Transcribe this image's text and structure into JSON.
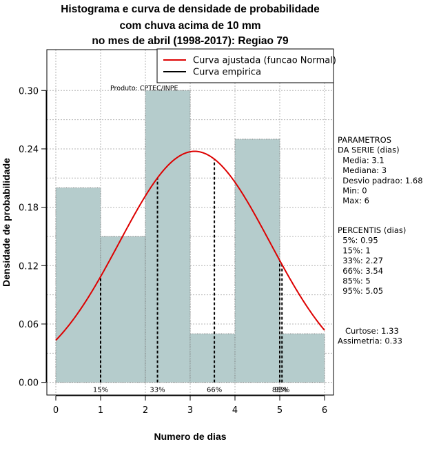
{
  "chart_data": {
    "type": "bar",
    "title_lines": [
      "Histograma e curva de densidade de probabilidade",
      "com chuva acima de 10 mm",
      "no mes de abril (1998-2017): Regiao 79"
    ],
    "xlabel": "Numero de dias",
    "ylabel": "Densidade de probabilidade",
    "xlim": [
      -0.2,
      6.2
    ],
    "ylim": [
      -0.013,
      0.342
    ],
    "x_ticks": [
      0,
      1,
      2,
      3,
      4,
      5,
      6
    ],
    "y_ticks": [
      0.0,
      0.06,
      0.12,
      0.18,
      0.24,
      0.3
    ],
    "y_tick_labels": [
      "0.00",
      "0.06",
      "0.12",
      "0.18",
      "0.24",
      "0.30"
    ],
    "grid": true,
    "bins": [
      {
        "start": 0,
        "end": 1,
        "density": 0.2
      },
      {
        "start": 1,
        "end": 2,
        "density": 0.15
      },
      {
        "start": 2,
        "end": 3,
        "density": 0.3
      },
      {
        "start": 3,
        "end": 4,
        "density": 0.05
      },
      {
        "start": 4,
        "end": 5,
        "density": 0.25
      },
      {
        "start": 5,
        "end": 6,
        "density": 0.05
      }
    ],
    "bar_color": "#b5cccc",
    "normal_curve": {
      "mean": 3.1,
      "sd": 1.68,
      "color": "#dd0000"
    },
    "percentile_lines": [
      {
        "label": "15%",
        "x": 1.0
      },
      {
        "label": "33%",
        "x": 2.27
      },
      {
        "label": "66%",
        "x": 3.54
      },
      {
        "label": "85%",
        "x": 5.0
      },
      {
        "label": "95%",
        "x": 5.05
      }
    ],
    "legend": {
      "position": "top-right",
      "entries": [
        {
          "label": "Curva ajustada (funcao Normal)",
          "color": "#dd0000"
        },
        {
          "label": "Curva empirica",
          "color": "#000000"
        }
      ]
    },
    "credit": "Produto: CPTEC/INPE",
    "side_panel": {
      "parametros": [
        "PARAMETROS",
        "DA SERIE (dias)",
        "  Media: 3.1",
        "  Mediana: 3",
        "  Desvio padrao: 1.68",
        "  Min: 0",
        "  Max: 6"
      ],
      "percentis": [
        "PERCENTIS (dias)",
        "  5%: 0.95",
        "  15%: 1",
        "  33%: 2.27",
        "  66%: 3.54",
        "  85%: 5",
        "  95%: 5.05"
      ],
      "stats": [
        "   Curtose: 1.33",
        "Assimetria: 0.33"
      ]
    }
  }
}
